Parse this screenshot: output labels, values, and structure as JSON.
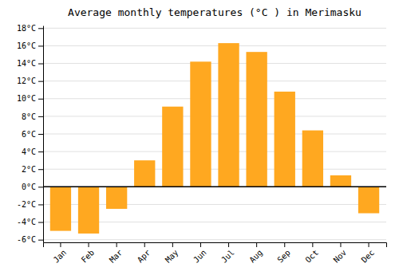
{
  "chart_data": {
    "type": "bar",
    "title": "Average monthly temperatures (°C ) in Merimasku",
    "categories": [
      "Jan",
      "Feb",
      "Mar",
      "Apr",
      "May",
      "Jun",
      "Jul",
      "Aug",
      "Sep",
      "Oct",
      "Nov",
      "Dec"
    ],
    "values": [
      -5.0,
      -5.3,
      -2.5,
      3.0,
      9.1,
      14.2,
      16.3,
      15.3,
      10.8,
      6.4,
      1.3,
      -3.0
    ],
    "color": "#FFA820",
    "ylim": [
      -6.3,
      18.3
    ],
    "yticks": [
      {
        "value": -6,
        "label": "-6°C"
      },
      {
        "value": -4,
        "label": "-4°C"
      },
      {
        "value": -2,
        "label": "-2°C"
      },
      {
        "value": 0,
        "label": "0°C"
      },
      {
        "value": 2,
        "label": "2°C"
      },
      {
        "value": 4,
        "label": "4°C"
      },
      {
        "value": 6,
        "label": "6°C"
      },
      {
        "value": 8,
        "label": "8°C"
      },
      {
        "value": 10,
        "label": "10°C"
      },
      {
        "value": 12,
        "label": "12°C"
      },
      {
        "value": 14,
        "label": "14°C"
      },
      {
        "value": 16,
        "label": "16°C"
      },
      {
        "value": 18,
        "label": "18°C"
      }
    ],
    "grid": true
  }
}
